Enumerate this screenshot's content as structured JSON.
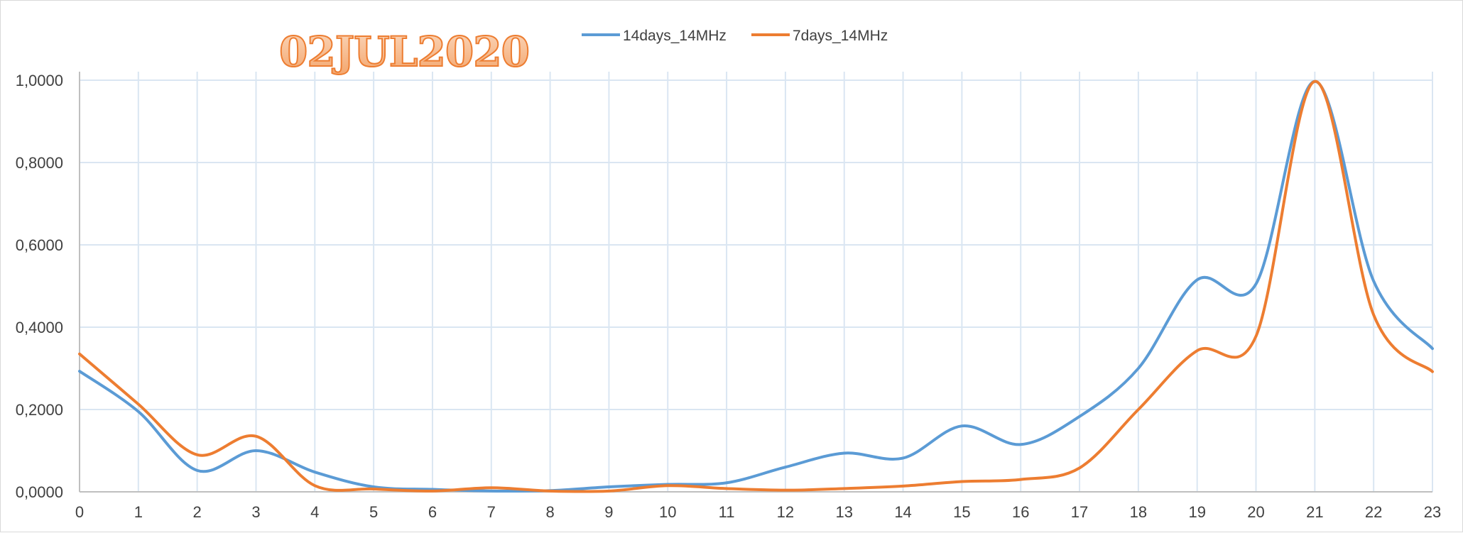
{
  "chart_data": {
    "type": "line",
    "title": "02JUL2020",
    "xlabel": "",
    "ylabel": "",
    "x": [
      0,
      1,
      2,
      3,
      4,
      5,
      6,
      7,
      8,
      9,
      10,
      11,
      12,
      13,
      14,
      15,
      16,
      17,
      18,
      19,
      20,
      21,
      22,
      23
    ],
    "x_tick_labels": [
      "0",
      "1",
      "2",
      "3",
      "4",
      "5",
      "6",
      "7",
      "8",
      "9",
      "10",
      "11",
      "12",
      "13",
      "14",
      "15",
      "16",
      "17",
      "18",
      "19",
      "20",
      "21",
      "22",
      "23"
    ],
    "ylim": [
      0,
      1
    ],
    "y_ticks": [
      0,
      0.2,
      0.4,
      0.6,
      0.8,
      1.0
    ],
    "y_tick_labels": [
      "0,0000",
      "0,2000",
      "0,4000",
      "0,6000",
      "0,8000",
      "1,0000"
    ],
    "grid": true,
    "legend_position": "top-center",
    "smooth": true,
    "series": [
      {
        "name": "14days_14MHz",
        "color": "#5B9BD5",
        "values": [
          0.293,
          0.195,
          0.052,
          0.1,
          0.048,
          0.012,
          0.006,
          0.002,
          0.003,
          0.012,
          0.018,
          0.022,
          0.06,
          0.094,
          0.082,
          0.16,
          0.115,
          0.183,
          0.3,
          0.515,
          0.505,
          0.997,
          0.512,
          0.348
        ]
      },
      {
        "name": "7days_14MHz",
        "color": "#ED7D31",
        "values": [
          0.335,
          0.213,
          0.09,
          0.135,
          0.015,
          0.007,
          0.002,
          0.01,
          0.002,
          0.002,
          0.015,
          0.008,
          0.004,
          0.008,
          0.014,
          0.025,
          0.03,
          0.058,
          0.2,
          0.343,
          0.378,
          0.997,
          0.43,
          0.292
        ]
      }
    ],
    "title_color": "#ED7D31"
  }
}
